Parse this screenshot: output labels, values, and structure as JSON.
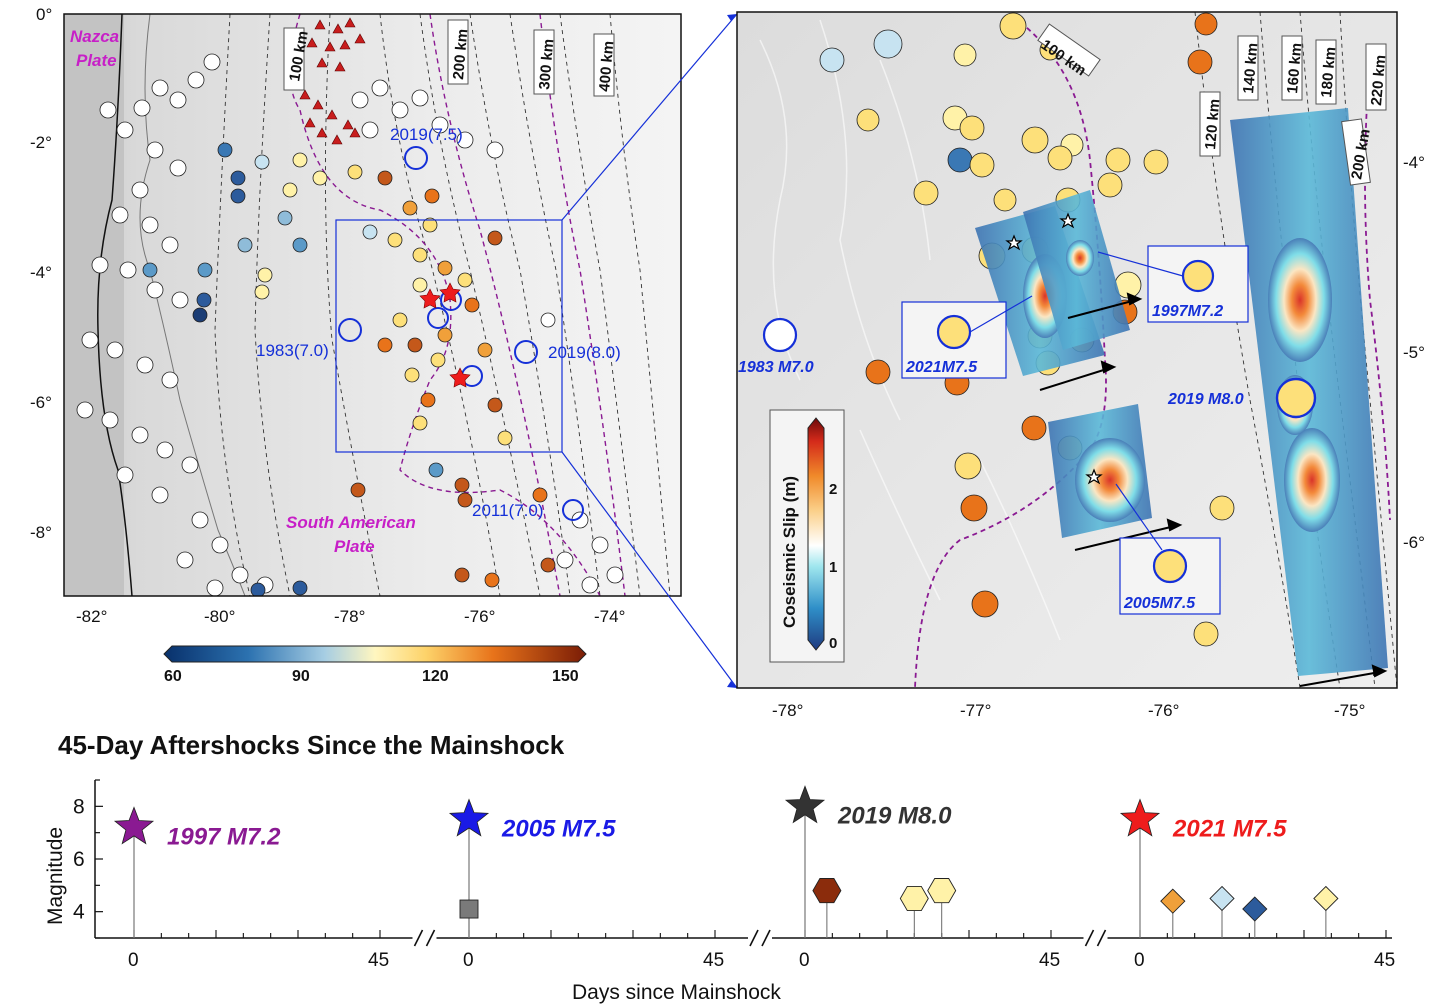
{
  "left_map": {
    "lon_ticks": [
      "-82°",
      "-80°",
      "-78°",
      "-76°",
      "-74°"
    ],
    "lat_ticks": [
      "0°",
      "-2°",
      "-4°",
      "-6°",
      "-8°"
    ],
    "plate_labels": [
      "Nazca",
      "Plate",
      "South American",
      "Plate"
    ],
    "contour_labels": [
      "100 km",
      "200 km",
      "300 km",
      "400 km"
    ],
    "event_labels": [
      "2019(7.5)",
      "1983(7.0)",
      "2019(8.0)",
      "2011(7.0)"
    ],
    "colorbar_ticks": [
      "60",
      "90",
      "120",
      "150"
    ]
  },
  "right_map": {
    "lon_ticks": [
      "-78°",
      "-77°",
      "-76°",
      "-75°"
    ],
    "lat_ticks": [
      "-4°",
      "-5°",
      "-6°"
    ],
    "contour_labels": [
      "100 km",
      "120 km",
      "140 km",
      "160 km",
      "180 km",
      "200 km",
      "220 km"
    ],
    "event_labels": [
      "1997M7.2",
      "2021M7.5",
      "1983 M7.0",
      "2019 M8.0",
      "2005M7.5"
    ],
    "slip_colorbar": {
      "title": "Coseismic Slip (m)",
      "ticks": [
        "0",
        "1",
        "2"
      ]
    }
  },
  "timeline": {
    "title": "45-Day Aftershocks Since the Mainshock",
    "ylabel": "Magnitude",
    "xlabel": "Days since Mainshock",
    "y_ticks": [
      "4",
      "6",
      "8"
    ],
    "segment_ticks": [
      "0",
      "45"
    ],
    "mainshocks": [
      {
        "label": "1997 M7.2",
        "magnitude": 7.2,
        "color": "#8a1a92"
      },
      {
        "label": "2005 M7.5",
        "magnitude": 7.5,
        "color": "#1a1ae6"
      },
      {
        "label": "2019 M8.0",
        "magnitude": 8.0,
        "color": "#333333"
      },
      {
        "label": "2021 M7.5",
        "magnitude": 7.5,
        "color": "#ee1c1c"
      }
    ]
  },
  "chart_data": {
    "type": "scatter",
    "title": "45-Day Aftershocks Since the Mainshock",
    "xlabel": "Days since Mainshock",
    "ylabel": "Magnitude",
    "ylim": [
      3,
      9
    ],
    "segments": [
      {
        "name": "1997 M7.2",
        "mainshock": {
          "day": 0,
          "magnitude": 7.2
        },
        "aftershocks": []
      },
      {
        "name": "2005 M7.5",
        "mainshock": {
          "day": 0,
          "magnitude": 7.5
        },
        "aftershocks": [
          {
            "day": 0,
            "magnitude": 4.1,
            "marker": "square"
          }
        ]
      },
      {
        "name": "2019 M8.0",
        "mainshock": {
          "day": 0,
          "magnitude": 8.0
        },
        "aftershocks": [
          {
            "day": 4,
            "magnitude": 4.8,
            "marker": "hexagon"
          },
          {
            "day": 20,
            "magnitude": 4.5,
            "marker": "hexagon"
          },
          {
            "day": 25,
            "magnitude": 4.8,
            "marker": "hexagon"
          }
        ]
      },
      {
        "name": "2021 M7.5",
        "mainshock": {
          "day": 0,
          "magnitude": 7.5
        },
        "aftershocks": [
          {
            "day": 6,
            "magnitude": 4.4,
            "marker": "diamond"
          },
          {
            "day": 15,
            "magnitude": 4.5,
            "marker": "diamond"
          },
          {
            "day": 21,
            "magnitude": 4.1,
            "marker": "diamond"
          },
          {
            "day": 34,
            "magnitude": 4.5,
            "marker": "diamond"
          }
        ]
      }
    ]
  }
}
